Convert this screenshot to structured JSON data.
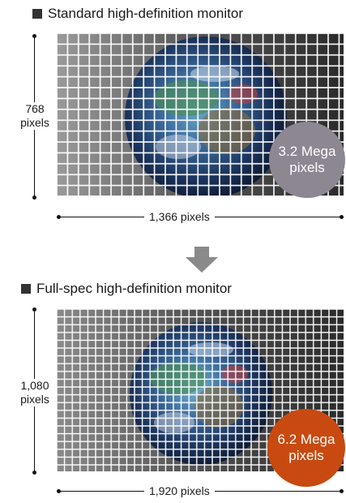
{
  "sections": {
    "standard": {
      "title": "Standard high-definition monitor",
      "height_value": "768",
      "height_unit": "pixels",
      "width_label": "1,366 pixels",
      "badge_line1": "3.2 Mega",
      "badge_line2": "pixels",
      "badge_color": "#8d8792"
    },
    "full": {
      "title": "Full-spec high-definition monitor",
      "height_value": "1,080",
      "height_unit": "pixels",
      "width_label": "1,920 pixels",
      "badge_line1": "6.2 Mega",
      "badge_line2": "pixels",
      "badge_color": "#c84a10"
    }
  },
  "icons": {
    "transition": "down-arrow-icon"
  }
}
